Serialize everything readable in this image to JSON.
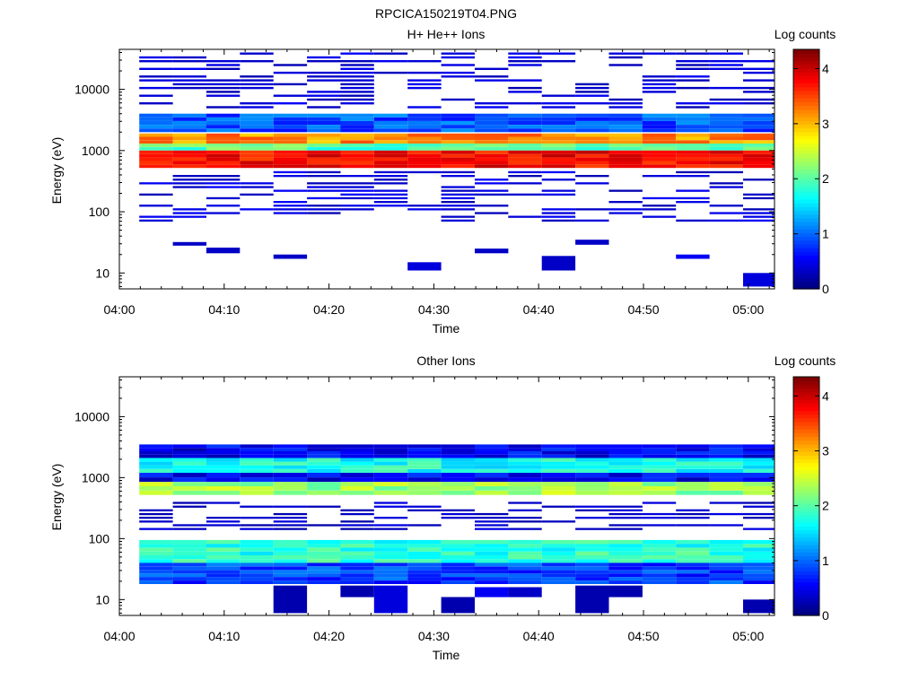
{
  "figure_title": "RPCICA150219T04.PNG",
  "colorbar": {
    "label": "Log counts",
    "ticks": [
      0,
      1,
      2,
      3,
      4
    ],
    "range": [
      0,
      4.35
    ],
    "colormap": "jet"
  },
  "chart_data": [
    {
      "type": "heatmap",
      "title": "H+ He++ Ions",
      "xlabel": "Time",
      "ylabel": "Energy (eV)",
      "y_scale": "log",
      "ylim": [
        5.5,
        45000
      ],
      "x_ticks": [
        "04:00",
        "04:10",
        "04:20",
        "04:30",
        "04:40",
        "04:50",
        "05:00"
      ],
      "xlim_minutes_after_0400": [
        0,
        62.5
      ],
      "y_ticks": [
        10,
        100,
        1000,
        10000
      ],
      "time_bins_start_minutes": [
        1.9,
        5.1,
        8.3,
        11.5,
        14.7,
        17.9,
        21.1,
        24.3,
        27.5,
        30.7,
        33.9,
        37.1,
        40.3,
        43.5,
        46.7,
        49.9,
        53.1,
        56.3,
        59.5
      ],
      "time_bin_width_minutes": 3.2,
      "bands": [
        {
          "emin": 4600,
          "emax": 40000,
          "level": 0.35,
          "note": "sparse striped counts across all time bins"
        },
        {
          "emin": 2000,
          "emax": 4000,
          "level": 0.9
        },
        {
          "emin": 1300,
          "emax": 1900,
          "level": 3.2
        },
        {
          "emin": 1000,
          "emax": 1300,
          "level": 2.0
        },
        {
          "emin": 520,
          "emax": 1000,
          "level": 3.8
        },
        {
          "emin": 65,
          "emax": 460,
          "level": 0.35,
          "note": "sparse striped counts"
        }
      ],
      "isolated_cells": [
        {
          "t": 5.1,
          "emin": 28,
          "emax": 32,
          "level": 0.3
        },
        {
          "t": 8.3,
          "emin": 21,
          "emax": 26,
          "level": 0.3
        },
        {
          "t": 14.7,
          "emin": 17,
          "emax": 20,
          "level": 0.3
        },
        {
          "t": 27.5,
          "emin": 11,
          "emax": 15,
          "level": 0.4
        },
        {
          "t": 33.9,
          "emin": 21,
          "emax": 25,
          "level": 0.3
        },
        {
          "t": 40.3,
          "emin": 11,
          "emax": 19,
          "level": 0.3
        },
        {
          "t": 43.5,
          "emin": 29,
          "emax": 35,
          "level": 0.3
        },
        {
          "t": 53.1,
          "emin": 17,
          "emax": 20,
          "level": 0.5
        },
        {
          "t": 59.5,
          "emin": 6,
          "emax": 10,
          "level": 0.4
        }
      ]
    },
    {
      "type": "heatmap",
      "title": "Other Ions",
      "xlabel": "Time",
      "ylabel": "Energy (eV)",
      "y_scale": "log",
      "ylim": [
        5.5,
        45000
      ],
      "x_ticks": [
        "04:00",
        "04:10",
        "04:20",
        "04:30",
        "04:40",
        "04:50",
        "05:00"
      ],
      "xlim_minutes_after_0400": [
        0,
        62.5
      ],
      "y_ticks": [
        10,
        100,
        1000,
        10000
      ],
      "time_bins_start_minutes": [
        1.9,
        5.1,
        8.3,
        11.5,
        14.7,
        17.9,
        21.1,
        24.3,
        27.5,
        30.7,
        33.9,
        37.1,
        40.3,
        43.5,
        46.7,
        49.9,
        53.1,
        56.3,
        59.5
      ],
      "time_bin_width_minutes": 3.2,
      "bands": [
        {
          "emin": 2100,
          "emax": 3500,
          "level": 0.5
        },
        {
          "emin": 1200,
          "emax": 2100,
          "level": 1.7
        },
        {
          "emin": 850,
          "emax": 1200,
          "level": 0.5
        },
        {
          "emin": 520,
          "emax": 850,
          "level": 2.3
        },
        {
          "emin": 130,
          "emax": 400,
          "level": 0.3,
          "note": "sparse striped counts"
        },
        {
          "emin": 40,
          "emax": 95,
          "level": 1.8
        },
        {
          "emin": 18,
          "emax": 40,
          "level": 0.8
        }
      ],
      "isolated_cells": [
        {
          "t": 14.7,
          "emin": 6,
          "emax": 17,
          "level": 0.2
        },
        {
          "t": 21.1,
          "emin": 11,
          "emax": 17,
          "level": 0.2
        },
        {
          "t": 24.3,
          "emin": 6,
          "emax": 17,
          "level": 0.4
        },
        {
          "t": 30.7,
          "emin": 6,
          "emax": 11,
          "level": 0.2
        },
        {
          "t": 33.9,
          "emin": 11,
          "emax": 16,
          "level": 0.5
        },
        {
          "t": 37.1,
          "emin": 11,
          "emax": 16,
          "level": 0.3
        },
        {
          "t": 43.5,
          "emin": 6,
          "emax": 17,
          "level": 0.2
        },
        {
          "t": 46.7,
          "emin": 11,
          "emax": 17,
          "level": 0.2
        },
        {
          "t": 59.5,
          "emin": 6,
          "emax": 10,
          "level": 0.2
        }
      ]
    }
  ]
}
